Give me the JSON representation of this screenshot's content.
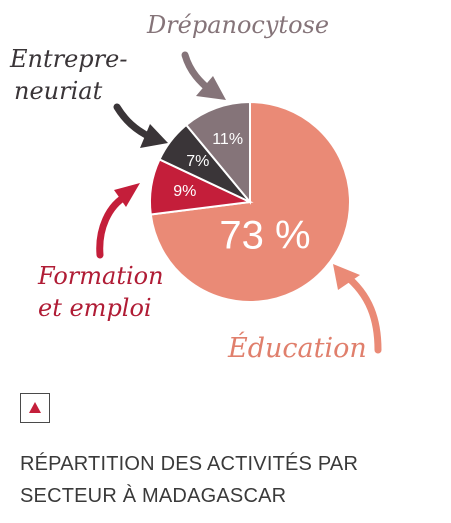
{
  "chart_data": {
    "type": "pie",
    "slices": [
      {
        "label": "Éducation",
        "value": 73,
        "value_label": "73 %",
        "color": "#ea8a76",
        "label_color": "#e07f6c"
      },
      {
        "label": "Formation et emploi",
        "label_lines": [
          "Formation",
          "et emploi"
        ],
        "value": 9,
        "value_label": "9%",
        "color": "#c41e3a",
        "label_color": "#b01c35"
      },
      {
        "label": "Entrepreneuriat",
        "label_lines": [
          "Entrepre-",
          "neuriat"
        ],
        "value": 7,
        "value_label": "7%",
        "color": "#3a3538",
        "label_color": "#3a3538"
      },
      {
        "label": "Drépanocytose",
        "value": 11,
        "value_label": "11%",
        "color": "#857479",
        "label_color": "#857479"
      }
    ]
  },
  "legend": {
    "marker_color": "#c41e3a",
    "marker_icon": "triangle-up-icon"
  },
  "caption": {
    "line1": "RÉPARTITION DES ACTIVITÉS PAR",
    "line2": "SECTEUR À MADAGASCAR"
  }
}
